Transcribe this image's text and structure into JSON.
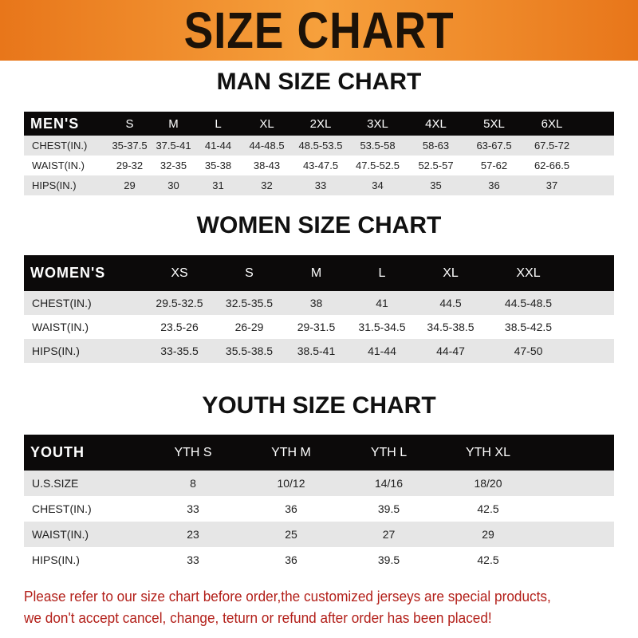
{
  "title": "SIZE CHART",
  "men": {
    "title": "MAN SIZE CHART",
    "header": [
      "MEN'S",
      "S",
      "M",
      "L",
      "XL",
      "2XL",
      "3XL",
      "4XL",
      "5XL",
      "6XL"
    ],
    "rows": [
      [
        "CHEST(IN.)",
        "35-37.5",
        "37.5-41",
        "41-44",
        "44-48.5",
        "48.5-53.5",
        "53.5-58",
        "58-63",
        "63-67.5",
        "67.5-72"
      ],
      [
        "WAIST(IN.)",
        "29-32",
        "32-35",
        "35-38",
        "38-43",
        "43-47.5",
        "47.5-52.5",
        "52.5-57",
        "57-62",
        "62-66.5"
      ],
      [
        "HIPS(IN.)",
        "29",
        "30",
        "31",
        "32",
        "33",
        "34",
        "35",
        "36",
        "37"
      ]
    ]
  },
  "women": {
    "title": "WOMEN SIZE CHART",
    "header": [
      "WOMEN'S",
      "XS",
      "S",
      "M",
      "L",
      "XL",
      "XXL"
    ],
    "rows": [
      [
        "CHEST(IN.)",
        "29.5-32.5",
        "32.5-35.5",
        "38",
        "41",
        "44.5",
        "44.5-48.5"
      ],
      [
        "WAIST(IN.)",
        "23.5-26",
        "26-29",
        "29-31.5",
        "31.5-34.5",
        "34.5-38.5",
        "38.5-42.5"
      ],
      [
        "HIPS(IN.)",
        "33-35.5",
        "35.5-38.5",
        "38.5-41",
        "41-44",
        "44-47",
        "47-50"
      ]
    ]
  },
  "youth": {
    "title": "YOUTH SIZE CHART",
    "header": [
      "YOUTH",
      "YTH S",
      "YTH M",
      "YTH L",
      "YTH XL"
    ],
    "rows": [
      [
        "U.S.SIZE",
        "8",
        "10/12",
        "14/16",
        "18/20"
      ],
      [
        "CHEST(IN.)",
        "33",
        "36",
        "39.5",
        "42.5"
      ],
      [
        "WAIST(IN.)",
        "23",
        "25",
        "27",
        "29"
      ],
      [
        "HIPS(IN.)",
        "33",
        "36",
        "39.5",
        "42.5"
      ]
    ]
  },
  "notice": [
    "Please refer to our size chart before order,the customized jerseys are special products,",
    "we don't accept cancel, change, teturn or refund after order has been placed!"
  ],
  "colors": {
    "banner": "#f08a2a",
    "header_row": "#0c0a0a",
    "notice": "#b3201a"
  }
}
